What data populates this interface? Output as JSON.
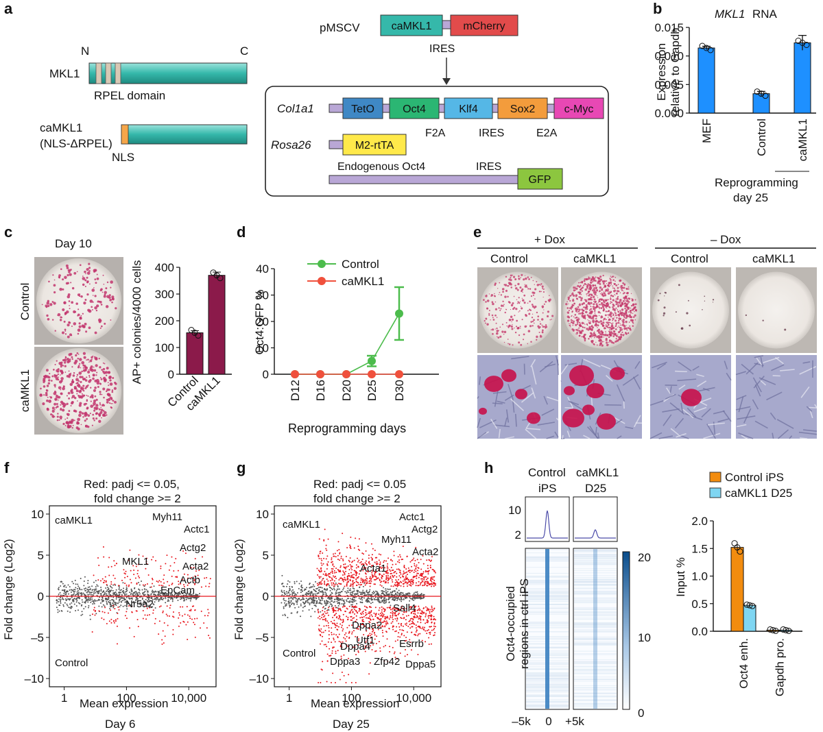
{
  "panels": {
    "a": "a",
    "b": "b",
    "c": "c",
    "d": "d",
    "e": "e",
    "f": "f",
    "g": "g",
    "h": "h"
  },
  "panel_a": {
    "n_label": "N",
    "c_label": "C",
    "mkl1_label": "MKL1",
    "rpel_label": "RPEL domain",
    "camkl1_label": "caMKL1",
    "camkl1_sub": "(NLS-ΔRPEL)",
    "nls_label": "NLS",
    "pmscv": "pMSCV",
    "vec_box1": "caMKL1",
    "vec_box2": "mCherry",
    "ires1": "IRES",
    "col1a1": "Col1a1",
    "rosa26": "Rosa26",
    "tet_boxes": [
      "TetO",
      "Oct4",
      "Klf4",
      "Sox2",
      "c-Myc"
    ],
    "links": [
      "F2A",
      "IRES",
      "E2A"
    ],
    "rtta": "M2-rtTA",
    "endog": "Endogenous Oct4",
    "ires2": "IRES",
    "gfp": "GFP",
    "colors": {
      "teal": "#35b8aa",
      "red": "#e24b4b",
      "teto": "#3f88c5",
      "oct4": "#2bb673",
      "klf4": "#55b7e6",
      "sox2": "#f39c3c",
      "cmyc": "#e848b4",
      "rtta": "#ffe94a",
      "gfp": "#8cc63f",
      "purple": "#b9a7d6"
    }
  },
  "panel_b": {
    "title": "MKL1",
    "title_suffix": "RNA",
    "ylabel1": "Expression",
    "ylabel2": "relative to Gapdh",
    "xlabel1": "Reprogramming",
    "xlabel2": "day 25",
    "color": "#1e90ff"
  },
  "panel_c": {
    "day": "Day 10",
    "row1": "Control",
    "row2": "caMKL1",
    "color": "#8b1a4a"
  },
  "panel_d": {
    "legend1": "Control",
    "legend2": "caMKL1",
    "green": "#4cbc4c",
    "red": "#f0503c"
  },
  "panel_e": {
    "dox_plus": "+ Dox",
    "dox_minus": "– Dox",
    "cols": [
      "Control",
      "caMKL1",
      "Control",
      "caMKL1"
    ]
  },
  "panel_f": {
    "title1": "Red: padj <= 0.05,",
    "title2": "fold change >= 2",
    "top": "caMKL1",
    "bottom": "Control",
    "xlabel": "Mean expression",
    "day": "Day 6",
    "genes": [
      "Myh11",
      "Actc1",
      "Actg2",
      "MKL1",
      "Acta2",
      "Actb",
      "EpCam",
      "Nr5a2"
    ]
  },
  "panel_g": {
    "title1": "Red: padj <= 0.05",
    "title2": "fold change >= 2",
    "top": "caMKL1",
    "bottom": "Control",
    "xlabel": "Mean expression",
    "day": "Day 25",
    "genes": [
      "Actc1",
      "Actg2",
      "Myh11",
      "Acta2",
      "Acta1",
      "Sall4",
      "Dppa2",
      "Utf1",
      "Esrrb",
      "Dppa4",
      "Dppa3",
      "Zfp42",
      "Dppa5"
    ]
  },
  "panel_h": {
    "col1a": "Control",
    "col1b": "iPS",
    "col2a": "caMKL1",
    "col2b": "D25",
    "ylabel1": "Oct4-occupied",
    "ylabel2": "regions in ctrl iPS",
    "prof_ticks": [
      "10",
      "2"
    ],
    "x_ticks": [
      "–5k",
      "0",
      "+5k"
    ],
    "cbar_ticks": [
      "20",
      "10",
      "0"
    ],
    "legend1": "Control iPS",
    "legend2": "caMKL1 D25",
    "bar_ylabel": "Input %",
    "orange": "#f28c0f",
    "cyan": "#7fd6f2"
  },
  "chart_data": [
    {
      "id": "b",
      "type": "bar",
      "title": "MKL1 RNA",
      "ylabel": "Expression relative to Gapdh",
      "ylim": [
        0,
        0.015
      ],
      "yticks": [
        "0.000",
        "0.005",
        "0.010",
        "0.015"
      ],
      "categories": [
        "MEF",
        "Control",
        "caMKL1"
      ],
      "values": [
        0.0114,
        0.0034,
        0.0123
      ],
      "errors": [
        0.0003,
        0.0004,
        0.0013
      ]
    },
    {
      "id": "c",
      "type": "bar",
      "ylabel": "AP+ colonies/4000 cells",
      "ylim": [
        0,
        400
      ],
      "yticks": [
        "0",
        "100",
        "200",
        "300",
        "400"
      ],
      "categories": [
        "Control",
        "caMKL1"
      ],
      "values": [
        155,
        370
      ],
      "errors": [
        8,
        12
      ]
    },
    {
      "id": "d",
      "type": "line",
      "ylabel": "Oct4:GFP %",
      "xlabel": "Reprogramming days",
      "ylim": [
        0,
        40
      ],
      "yticks": [
        "0",
        "10",
        "20",
        "30",
        "40"
      ],
      "x": [
        "D12",
        "D16",
        "D20",
        "D25",
        "D30"
      ],
      "series": [
        {
          "name": "Control",
          "values": [
            0,
            0,
            0,
            5,
            23
          ],
          "errors": [
            0,
            0,
            0,
            2,
            10
          ]
        },
        {
          "name": "caMKL1",
          "values": [
            0,
            0,
            0,
            0,
            0
          ],
          "errors": [
            0,
            0,
            0,
            0,
            0
          ]
        }
      ]
    },
    {
      "id": "f",
      "type": "scatter",
      "ylabel": "Fold change (Log2)",
      "xlabel": "Mean expression",
      "ylim": [
        -11,
        11
      ],
      "yticks": [
        "10",
        "5",
        "0",
        "–5",
        "–10"
      ],
      "xticks": [
        "1",
        "100",
        "10,000"
      ]
    },
    {
      "id": "g",
      "type": "scatter",
      "ylabel": "Fold change (Log2)",
      "xlabel": "Mean expression",
      "ylim": [
        -11,
        11
      ],
      "yticks": [
        "10",
        "5",
        "0",
        "–5",
        "–10"
      ],
      "xticks": [
        "1",
        "100",
        "10,000"
      ]
    },
    {
      "id": "h",
      "type": "bar",
      "ylabel": "Input %",
      "ylim": [
        0,
        2
      ],
      "yticks": [
        "0.0",
        "0.5",
        "1.0",
        "1.5",
        "2.0"
      ],
      "categories": [
        "Oct4 enh.",
        "Gapdh pro."
      ],
      "series": [
        {
          "name": "Control iPS",
          "values": [
            1.52,
            0.02
          ]
        },
        {
          "name": "caMKL1 D25",
          "values": [
            0.47,
            0.02
          ]
        }
      ]
    }
  ]
}
